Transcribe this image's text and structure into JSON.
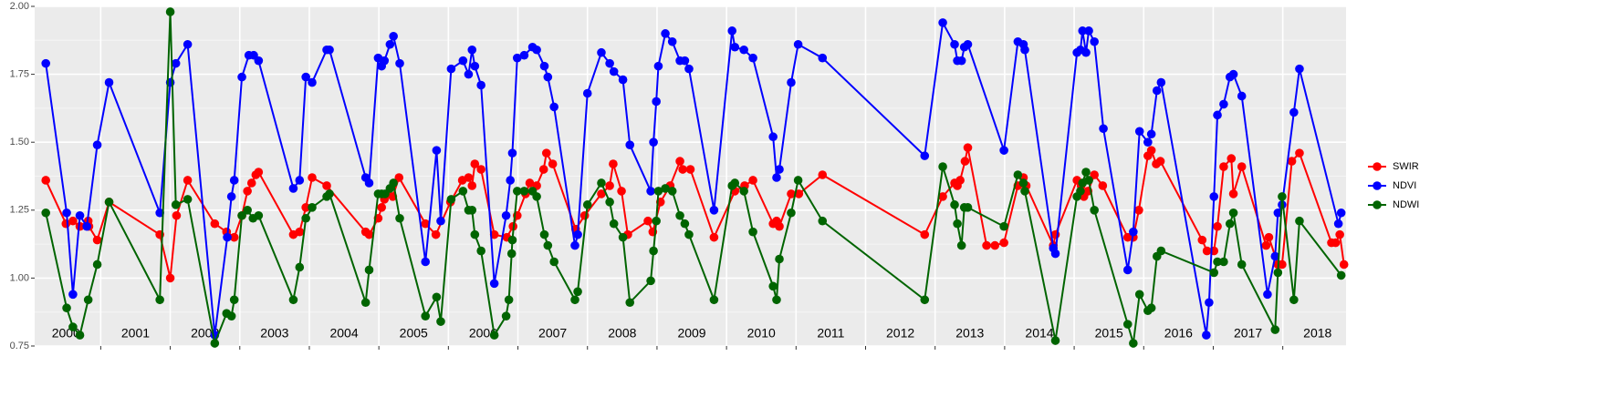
{
  "chart_data": {
    "type": "line",
    "xlim": [
      2000.05,
      2018.91
    ],
    "xticks": [
      2001,
      2002,
      2003,
      2004,
      2005,
      2006,
      2007,
      2008,
      2009,
      2010,
      2011,
      2012,
      2013,
      2014,
      2015,
      2016,
      2017,
      2018
    ],
    "ylim": [
      0.75,
      2.0
    ],
    "yticks": [
      {
        "value": 0.75,
        "label": "0.75"
      },
      {
        "value": 1,
        "label": "1.00"
      },
      {
        "value": 1.25,
        "label": "1.25"
      },
      {
        "value": 1.5,
        "label": "1.50"
      },
      {
        "value": 1.75,
        "label": "1.75"
      },
      {
        "value": 2,
        "label": "2.00"
      }
    ],
    "grid": true,
    "legend": "right",
    "year_labels": [
      {
        "value": 2000.5,
        "label": "2000"
      },
      {
        "value": 2001.5,
        "label": "2001"
      },
      {
        "value": 2002.5,
        "label": "2002"
      },
      {
        "value": 2003.5,
        "label": "2003"
      },
      {
        "value": 2004.5,
        "label": "2004"
      },
      {
        "value": 2005.5,
        "label": "2005"
      },
      {
        "value": 2006.5,
        "label": "2006"
      },
      {
        "value": 2007.5,
        "label": "2007"
      },
      {
        "value": 2008.5,
        "label": "2008"
      },
      {
        "value": 2009.5,
        "label": "2009"
      },
      {
        "value": 2010.5,
        "label": "2010"
      },
      {
        "value": 2011.5,
        "label": "2011"
      },
      {
        "value": 2012.5,
        "label": "2012"
      },
      {
        "value": 2013.5,
        "label": "2013"
      },
      {
        "value": 2014.5,
        "label": "2014"
      },
      {
        "value": 2015.5,
        "label": "2015"
      },
      {
        "value": 2016.5,
        "label": "2016"
      },
      {
        "value": 2017.5,
        "label": "2017"
      },
      {
        "value": 2018.5,
        "label": "2018"
      }
    ],
    "series": [
      {
        "name": "SWIR",
        "color": "#ff0000",
        "x": [
          2000.21,
          2000.5,
          2000.6,
          2000.7,
          2000.82,
          2000.83,
          2000.95,
          2001.12,
          2001.85,
          2002.0,
          2002.09,
          2002.25,
          2002.64,
          2002.81,
          2002.92,
          2003.03,
          2003.11,
          2003.17,
          2003.23,
          2003.27,
          2003.77,
          2003.86,
          2003.95,
          2004.04,
          2004.25,
          2004.81,
          2004.86,
          2004.99,
          2005.04,
          2005.08,
          2005.13,
          2005.2,
          2005.29,
          2005.67,
          2005.82,
          2006.03,
          2006.2,
          2006.29,
          2006.34,
          2006.38,
          2006.47,
          2006.66,
          2006.84,
          2006.93,
          2006.99,
          2007.11,
          2007.17,
          2007.27,
          2007.37,
          2007.41,
          2007.5,
          2007.83,
          2007.96,
          2008.2,
          2008.32,
          2008.37,
          2008.49,
          2008.58,
          2008.87,
          2008.94,
          2009.05,
          2009.19,
          2009.33,
          2009.37,
          2009.48,
          2009.82,
          2010.12,
          2010.26,
          2010.38,
          2010.67,
          2010.72,
          2010.76,
          2010.93,
          2011.04,
          2011.38,
          2012.85,
          2013.11,
          2013.28,
          2013.32,
          2013.36,
          2013.43,
          2013.47,
          2013.74,
          2013.86,
          2013.99,
          2014.19,
          2014.27,
          2014.31,
          2014.7,
          2014.73,
          2015.04,
          2015.1,
          2015.14,
          2015.2,
          2015.29,
          2015.41,
          2015.77,
          2015.85,
          2015.93,
          2016.06,
          2016.11,
          2016.18,
          2016.24,
          2016.84,
          2016.91,
          2017.01,
          2017.06,
          2017.15,
          2017.26,
          2017.29,
          2017.41,
          2017.76,
          2017.8,
          2017.93,
          2017.99,
          2018.13,
          2018.24,
          2018.7,
          2018.76,
          2018.82,
          2018.88
        ],
        "values": [
          1.36,
          1.2,
          1.21,
          1.19,
          1.21,
          1.19,
          1.14,
          1.28,
          1.16,
          1.0,
          1.23,
          1.36,
          1.2,
          1.17,
          1.15,
          1.23,
          1.32,
          1.35,
          1.38,
          1.39,
          1.16,
          1.17,
          1.26,
          1.37,
          1.34,
          1.17,
          1.16,
          1.22,
          1.26,
          1.29,
          1.31,
          1.3,
          1.37,
          1.2,
          1.16,
          1.28,
          1.36,
          1.37,
          1.34,
          1.42,
          1.4,
          1.16,
          1.15,
          1.19,
          1.23,
          1.31,
          1.35,
          1.34,
          1.4,
          1.46,
          1.42,
          1.18,
          1.23,
          1.31,
          1.34,
          1.42,
          1.32,
          1.16,
          1.21,
          1.17,
          1.28,
          1.34,
          1.43,
          1.4,
          1.4,
          1.15,
          1.32,
          1.34,
          1.36,
          1.2,
          1.21,
          1.19,
          1.31,
          1.31,
          1.38,
          1.16,
          1.3,
          1.35,
          1.34,
          1.36,
          1.43,
          1.48,
          1.12,
          1.12,
          1.13,
          1.34,
          1.37,
          1.34,
          1.12,
          1.16,
          1.36,
          1.34,
          1.3,
          1.32,
          1.38,
          1.34,
          1.15,
          1.15,
          1.25,
          1.45,
          1.47,
          1.42,
          1.43,
          1.14,
          1.1,
          1.1,
          1.19,
          1.41,
          1.44,
          1.31,
          1.41,
          1.12,
          1.15,
          1.05,
          1.05,
          1.43,
          1.46,
          1.13,
          1.13,
          1.16,
          1.05
        ]
      },
      {
        "name": "NDVI",
        "color": "#0000ff",
        "x": [
          2000.21,
          2000.51,
          2000.6,
          2000.7,
          2000.8,
          2000.95,
          2001.12,
          2001.85,
          2002.0,
          2002.08,
          2002.25,
          2002.64,
          2002.82,
          2002.88,
          2002.92,
          2003.03,
          2003.13,
          2003.2,
          2003.27,
          2003.77,
          2003.86,
          2003.95,
          2004.04,
          2004.25,
          2004.29,
          2004.81,
          2004.86,
          2004.99,
          2005.04,
          2005.08,
          2005.16,
          2005.21,
          2005.3,
          2005.67,
          2005.83,
          2005.89,
          2006.04,
          2006.21,
          2006.29,
          2006.34,
          2006.38,
          2006.47,
          2006.66,
          2006.83,
          2006.89,
          2006.92,
          2006.99,
          2007.09,
          2007.21,
          2007.27,
          2007.38,
          2007.43,
          2007.52,
          2007.82,
          2007.86,
          2008.0,
          2008.2,
          2008.32,
          2008.38,
          2008.51,
          2008.61,
          2008.91,
          2008.95,
          2008.99,
          2009.02,
          2009.12,
          2009.22,
          2009.33,
          2009.4,
          2009.46,
          2009.82,
          2010.08,
          2010.12,
          2010.25,
          2010.38,
          2010.67,
          2010.72,
          2010.76,
          2010.93,
          2011.03,
          2011.38,
          2012.85,
          2013.11,
          2013.28,
          2013.32,
          2013.38,
          2013.42,
          2013.47,
          2013.99,
          2014.19,
          2014.27,
          2014.29,
          2014.7,
          2014.73,
          2015.04,
          2015.09,
          2015.12,
          2015.17,
          2015.21,
          2015.29,
          2015.42,
          2015.77,
          2015.85,
          2015.94,
          2016.06,
          2016.11,
          2016.19,
          2016.25,
          2016.9,
          2016.94,
          2017.01,
          2017.06,
          2017.15,
          2017.24,
          2017.29,
          2017.41,
          2017.78,
          2017.89,
          2017.93,
          2017.99,
          2018.16,
          2018.24,
          2018.8,
          2018.84
        ],
        "values": [
          1.79,
          1.24,
          0.94,
          1.23,
          1.19,
          1.49,
          1.72,
          1.24,
          1.72,
          1.79,
          1.86,
          0.79,
          1.15,
          1.3,
          1.36,
          1.74,
          1.82,
          1.82,
          1.8,
          1.33,
          1.36,
          1.74,
          1.72,
          1.84,
          1.84,
          1.37,
          1.35,
          1.81,
          1.78,
          1.8,
          1.86,
          1.89,
          1.79,
          1.06,
          1.47,
          1.21,
          1.77,
          1.8,
          1.75,
          1.84,
          1.78,
          1.71,
          0.98,
          1.23,
          1.36,
          1.46,
          1.81,
          1.82,
          1.85,
          1.84,
          1.78,
          1.74,
          1.63,
          1.12,
          1.16,
          1.68,
          1.83,
          1.79,
          1.76,
          1.73,
          1.49,
          1.32,
          1.5,
          1.65,
          1.78,
          1.9,
          1.87,
          1.8,
          1.8,
          1.77,
          1.25,
          1.91,
          1.85,
          1.84,
          1.81,
          1.52,
          1.37,
          1.4,
          1.72,
          1.86,
          1.81,
          1.45,
          1.94,
          1.86,
          1.8,
          1.8,
          1.85,
          1.86,
          1.47,
          1.87,
          1.86,
          1.84,
          1.11,
          1.09,
          1.83,
          1.84,
          1.91,
          1.83,
          1.91,
          1.87,
          1.55,
          1.03,
          1.17,
          1.54,
          1.5,
          1.53,
          1.69,
          1.72,
          0.79,
          0.91,
          1.3,
          1.6,
          1.64,
          1.74,
          1.75,
          1.67,
          0.94,
          1.08,
          1.24,
          1.27,
          1.61,
          1.77,
          1.2,
          1.24
        ]
      },
      {
        "name": "NDWI",
        "color": "#006400",
        "x": [
          2000.21,
          2000.51,
          2000.6,
          2000.7,
          2000.82,
          2000.95,
          2001.12,
          2001.85,
          2002.0,
          2002.08,
          2002.25,
          2002.64,
          2002.81,
          2002.88,
          2002.92,
          2003.03,
          2003.11,
          2003.19,
          2003.27,
          2003.77,
          2003.86,
          2003.95,
          2004.04,
          2004.25,
          2004.29,
          2004.81,
          2004.86,
          2004.99,
          2005.04,
          2005.09,
          2005.16,
          2005.21,
          2005.3,
          2005.67,
          2005.83,
          2005.89,
          2006.04,
          2006.21,
          2006.29,
          2006.34,
          2006.38,
          2006.47,
          2006.66,
          2006.83,
          2006.87,
          2006.91,
          2006.92,
          2006.99,
          2007.09,
          2007.21,
          2007.27,
          2007.38,
          2007.43,
          2007.52,
          2007.82,
          2007.86,
          2008.0,
          2008.2,
          2008.32,
          2008.38,
          2008.51,
          2008.61,
          2008.91,
          2008.95,
          2008.99,
          2009.02,
          2009.12,
          2009.22,
          2009.33,
          2009.4,
          2009.46,
          2009.82,
          2010.08,
          2010.12,
          2010.25,
          2010.38,
          2010.67,
          2010.72,
          2010.76,
          2010.93,
          2011.03,
          2011.38,
          2012.85,
          2013.11,
          2013.28,
          2013.32,
          2013.38,
          2013.42,
          2013.47,
          2013.99,
          2014.19,
          2014.27,
          2014.29,
          2014.73,
          2015.04,
          2015.09,
          2015.12,
          2015.17,
          2015.21,
          2015.29,
          2015.77,
          2015.85,
          2015.94,
          2016.06,
          2016.11,
          2016.19,
          2016.25,
          2017.01,
          2017.06,
          2017.15,
          2017.24,
          2017.29,
          2017.41,
          2017.89,
          2017.93,
          2017.99,
          2018.16,
          2018.24,
          2018.84
        ],
        "values": [
          1.24,
          0.89,
          0.82,
          0.79,
          0.92,
          1.05,
          1.28,
          0.92,
          1.98,
          1.27,
          1.29,
          0.76,
          0.87,
          0.86,
          0.92,
          1.23,
          1.25,
          1.22,
          1.23,
          0.92,
          1.04,
          1.22,
          1.26,
          1.3,
          1.31,
          0.91,
          1.03,
          1.31,
          1.31,
          1.31,
          1.33,
          1.35,
          1.22,
          0.86,
          0.93,
          0.84,
          1.29,
          1.32,
          1.25,
          1.25,
          1.16,
          1.1,
          0.79,
          0.86,
          0.92,
          1.09,
          1.14,
          1.32,
          1.32,
          1.32,
          1.3,
          1.16,
          1.12,
          1.06,
          0.92,
          0.95,
          1.27,
          1.35,
          1.28,
          1.2,
          1.15,
          0.91,
          0.99,
          1.1,
          1.21,
          1.32,
          1.33,
          1.32,
          1.23,
          1.2,
          1.16,
          0.92,
          1.34,
          1.35,
          1.32,
          1.17,
          0.97,
          0.92,
          1.07,
          1.24,
          1.36,
          1.21,
          0.92,
          1.41,
          1.27,
          1.2,
          1.12,
          1.26,
          1.26,
          1.19,
          1.38,
          1.35,
          1.32,
          0.77,
          1.3,
          1.32,
          1.35,
          1.39,
          1.36,
          1.25,
          0.83,
          0.76,
          0.94,
          0.88,
          0.89,
          1.08,
          1.1,
          1.02,
          1.06,
          1.06,
          1.2,
          1.24,
          1.05,
          0.81,
          1.02,
          1.3,
          0.92,
          1.21,
          1.01
        ]
      }
    ]
  }
}
